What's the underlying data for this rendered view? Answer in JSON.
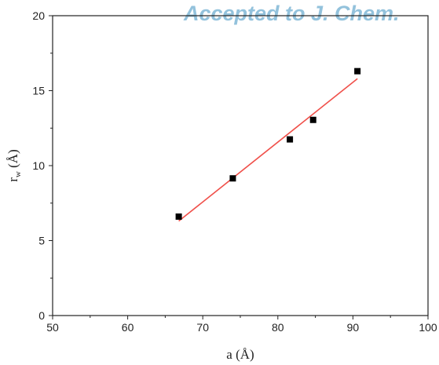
{
  "watermark": {
    "text": "Accepted to J. Chem.",
    "color": "#93c2dc"
  },
  "chart_data": {
    "type": "scatter",
    "xlabel": "a (Å)",
    "ylabel": "r",
    "ylabel_subscript": "w",
    "ylabel_unit": " (Å)",
    "xlim": [
      50,
      100
    ],
    "ylim": [
      0,
      20
    ],
    "xticks": [
      50,
      60,
      70,
      80,
      90,
      100
    ],
    "yticks": [
      0,
      5,
      10,
      15,
      20
    ],
    "grid": false,
    "series": [
      {
        "type": "scatter",
        "marker": "square",
        "color": "#000000",
        "x": [
          66.8,
          74.0,
          81.6,
          84.7,
          90.6
        ],
        "y": [
          6.6,
          9.15,
          11.75,
          13.05,
          16.3
        ]
      },
      {
        "type": "line",
        "color": "#f0504a",
        "x": [
          66.8,
          90.6
        ],
        "y": [
          6.3,
          15.8
        ]
      }
    ]
  }
}
